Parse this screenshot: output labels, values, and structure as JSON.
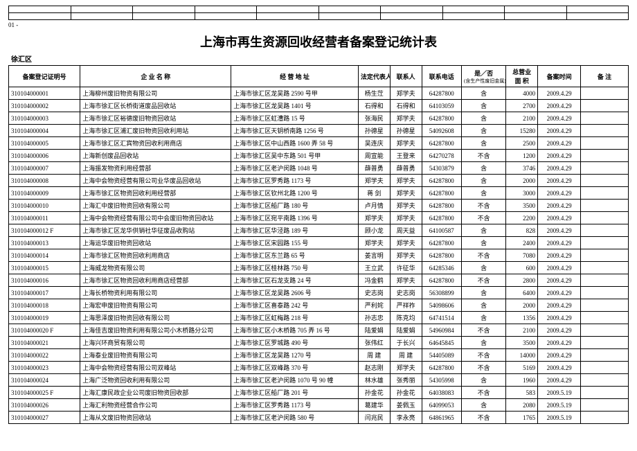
{
  "pager": "01 -",
  "title": "上海市再生资源回收经营者备案登记统计表",
  "district": "徐汇区",
  "headers": {
    "id": "备案登记证明号",
    "name": "企 业 名 称",
    "addr": "经 营 地 址",
    "legal": "法定代表人",
    "contact": "联系人",
    "phone": "联系电话",
    "flag": "是／否",
    "flag_sub": "(含生产性废旧金属)",
    "area": "总营业\n面 积",
    "date": "备案时间",
    "note": "备 注"
  },
  "rows": [
    {
      "id": "310104000001",
      "name": "上海柳州废旧物资有限公司",
      "addr": "上海市徐汇区龙吴路 2590 号甲",
      "legal": "杨生茳",
      "contact": "郑学夫",
      "phone": "64287800",
      "flag": "含",
      "area": "4000",
      "date": "2009.4.29",
      "note": ""
    },
    {
      "id": "310104000002",
      "name": "上海市徐汇区长桥街道废品回收站",
      "addr": "上海市徐汇区龙吴路 1401 号",
      "legal": "石得和",
      "contact": "石得和",
      "phone": "64103059",
      "flag": "含",
      "area": "2700",
      "date": "2009.4.29",
      "note": ""
    },
    {
      "id": "310104000003",
      "name": "上海市徐汇区裕德废旧物资回收站",
      "addr": "上海市徐汇区虹漕路 15 号",
      "legal": "张海民",
      "contact": "郑学夫",
      "phone": "64287800",
      "flag": "含",
      "area": "2100",
      "date": "2009.4.29",
      "note": ""
    },
    {
      "id": "310104000004",
      "name": "上海市徐汇区浦汇废旧物资回收利用站",
      "addr": "上海市徐汇区天钥桥南路 1256 号",
      "legal": "孙德星",
      "contact": "孙德星",
      "phone": "54092608",
      "flag": "含",
      "area": "15280",
      "date": "2009.4.29",
      "note": ""
    },
    {
      "id": "310104000005",
      "name": "上海市徐汇区汇宾物资回收利用商店",
      "addr": "上海市徐汇区中山西路 1600 弄 58 号",
      "legal": "吴连庆",
      "contact": "郑学夫",
      "phone": "64287800",
      "flag": "含",
      "area": "2500",
      "date": "2009.4.29",
      "note": ""
    },
    {
      "id": "310104000006",
      "name": "上海新创废品回收站",
      "addr": "上海市徐汇区吴中东路 501 号甲",
      "legal": "周宣能",
      "contact": "王登来",
      "phone": "64270278",
      "flag": "不含",
      "area": "1200",
      "date": "2009.4.29",
      "note": ""
    },
    {
      "id": "310104000007",
      "name": "上海振发物资利用经营部",
      "addr": "上海市徐汇区老沪闵路 1048 号",
      "legal": "薛普勇",
      "contact": "薛普勇",
      "phone": "54303879",
      "flag": "含",
      "area": "3746",
      "date": "2009.4.29",
      "note": ""
    },
    {
      "id": "310104000008",
      "name": "上海中会物资经营有限公司业华废品回收站",
      "addr": "上海市徐汇区罗秀路 1173 号",
      "legal": "郑学夫",
      "contact": "郑学夫",
      "phone": "64287800",
      "flag": "含",
      "area": "2000",
      "date": "2009.4.29",
      "note": ""
    },
    {
      "id": "310104000009",
      "name": "上海市徐汇区物资回收利用经营部",
      "addr": "上海市徐汇区钦州北路 1200 号",
      "legal": "蒋 剑",
      "contact": "郑学夫",
      "phone": "64287800",
      "flag": "含",
      "area": "3000",
      "date": "2009.4.29",
      "note": ""
    },
    {
      "id": "310104000010",
      "name": "上海汇中废旧物资回收有限公司",
      "addr": "上海市徐汇区船厂路 180 号",
      "legal": "卢月情",
      "contact": "郑学夫",
      "phone": "64287800",
      "flag": "不含",
      "area": "3500",
      "date": "2009.4.29",
      "note": ""
    },
    {
      "id": "310104000011",
      "name": "上海中会物资经营有限公司中会废旧物资回收站",
      "addr": "上海市徐汇区宛平南路 1396 号",
      "legal": "郑学夫",
      "contact": "郑学夫",
      "phone": "64287800",
      "flag": "不含",
      "area": "2200",
      "date": "2009.4.29",
      "note": ""
    },
    {
      "id": "310104000012 F",
      "name": "上海市徐汇区龙华供销社华征废品收购站",
      "addr": "上海市徐汇区华泾路 189 号",
      "legal": "顾小龙",
      "contact": "周天益",
      "phone": "64100587",
      "flag": "含",
      "area": "828",
      "date": "2009.4.29",
      "note": ""
    },
    {
      "id": "310104000013",
      "name": "上海运华废旧物资回收站",
      "addr": "上海市徐汇区宋园路 155 号",
      "legal": "郑学夫",
      "contact": "郑学夫",
      "phone": "64287800",
      "flag": "含",
      "area": "2400",
      "date": "2009.4.29",
      "note": ""
    },
    {
      "id": "310104000014",
      "name": "上海市徐汇区物资回收利用商店",
      "addr": "上海市徐汇区东兰路 65 号",
      "legal": "姜言明",
      "contact": "郑学夫",
      "phone": "64287800",
      "flag": "不含",
      "area": "7080",
      "date": "2009.4.29",
      "note": ""
    },
    {
      "id": "310104000015",
      "name": "上海威龙物资有限公司",
      "addr": "上海市徐汇区桂林路 750 号",
      "legal": "王立武",
      "contact": "许征华",
      "phone": "64285346",
      "flag": "含",
      "area": "600",
      "date": "2009.4.29",
      "note": ""
    },
    {
      "id": "310104000016",
      "name": "上海市徐汇区物资回收利用商店经营部",
      "addr": "上海市徐汇区石龙支路 24 号",
      "legal": "冯金鹤",
      "contact": "郑学夫",
      "phone": "64287800",
      "flag": "不含",
      "area": "2800",
      "date": "2009.4.29",
      "note": ""
    },
    {
      "id": "310104000017",
      "name": "上海长桥物资利用有限公司",
      "addr": "上海市徐汇区龙吴路 2606 号",
      "legal": "史志岗",
      "contact": "史志岗",
      "phone": "56308899",
      "flag": "含",
      "area": "6400",
      "date": "2009.4.29",
      "note": ""
    },
    {
      "id": "310104000018",
      "name": "上海宏申废旧物资有限公司",
      "addr": "上海市徐汇区喜泰路 242 号",
      "legal": "严利姹",
      "contact": "严祥祚",
      "phone": "54098606",
      "flag": "含",
      "area": "2000",
      "date": "2009.4.29",
      "note": ""
    },
    {
      "id": "310104000019",
      "name": "上海思泽废旧物资回收有限公司",
      "addr": "上海市徐汇区虹梅路 218 号",
      "legal": "孙志忠",
      "contact": "陈克均",
      "phone": "64741514",
      "flag": "含",
      "area": "1356",
      "date": "2009.4.29",
      "note": ""
    },
    {
      "id": "310104000020 F",
      "name": "上海佳吉废旧物资利用有限公司小木桥路分公司",
      "addr": "上海市徐汇区小木桥路 705 弄 16 号",
      "legal": "陆爱娟",
      "contact": "陆爱娟",
      "phone": "54960984",
      "flag": "不含",
      "area": "2100",
      "date": "2009.4.29",
      "note": ""
    },
    {
      "id": "310104000021",
      "name": "上海兴环商贸有限公司",
      "addr": "上海市徐汇区罗城路 490 号",
      "legal": "张伟红",
      "contact": "于长兴",
      "phone": "64645845",
      "flag": "含",
      "area": "3500",
      "date": "2009.4.29",
      "note": ""
    },
    {
      "id": "310104000022",
      "name": "上海泰业废旧物资有限公司",
      "addr": "上海市徐汇区龙吴路 1270 号",
      "legal": "周 建",
      "contact": "周 建",
      "phone": "54405089",
      "flag": "不含",
      "area": "14000",
      "date": "2009.4.29",
      "note": ""
    },
    {
      "id": "310104000023",
      "name": "上海中会物资经营有限公司双峰站",
      "addr": "上海市徐汇区双峰路 370 号",
      "legal": "赵志刚",
      "contact": "郑学夫",
      "phone": "64287800",
      "flag": "不含",
      "area": "5169",
      "date": "2009.4.29",
      "note": ""
    },
    {
      "id": "310104000024",
      "name": "上海广泛物资回收利用有限公司",
      "addr": "上海市徐汇区老沪闵路 1070 号 90 幢",
      "legal": "林水雄",
      "contact": "张秀丽",
      "phone": "54305998",
      "flag": "含",
      "area": "1960",
      "date": "2009.4.29",
      "note": ""
    },
    {
      "id": "310104000025 F",
      "name": "上海汇康民政企业公司废旧物资回收部",
      "addr": "上海市徐汇区船厂路 201 号",
      "legal": "孙金花",
      "contact": "孙金花",
      "phone": "64038083",
      "flag": "不含",
      "area": "583",
      "date": "2009.5.19",
      "note": ""
    },
    {
      "id": "310104000026",
      "name": "上海汇利物资经营合作公司",
      "addr": "上海市徐汇区罗秀路 1173 号",
      "legal": "葛建华",
      "contact": "姜佩玉",
      "phone": "64099053",
      "flag": "含",
      "area": "2080",
      "date": "2009.5.19",
      "note": ""
    },
    {
      "id": "310104000027",
      "name": "上海从文废旧物资回收站",
      "addr": "上海市徐汇区老沪闵路 580 号",
      "legal": "闫兆民",
      "contact": "李永亮",
      "phone": "64861965",
      "flag": "不含",
      "area": "1765",
      "date": "2009.5.19",
      "note": ""
    }
  ]
}
